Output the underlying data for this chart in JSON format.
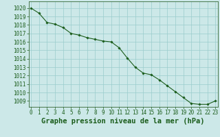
{
  "x": [
    0,
    1,
    2,
    3,
    4,
    5,
    6,
    7,
    8,
    9,
    10,
    11,
    12,
    13,
    14,
    15,
    16,
    17,
    18,
    19,
    20,
    21,
    22,
    23
  ],
  "y": [
    1020.0,
    1019.4,
    1018.3,
    1018.1,
    1017.7,
    1017.0,
    1016.8,
    1016.5,
    1016.3,
    1016.1,
    1016.0,
    1015.3,
    1014.1,
    1013.0,
    1012.3,
    1012.1,
    1011.5,
    1010.8,
    1010.1,
    1009.4,
    1008.7,
    1008.6,
    1008.6,
    1009.0
  ],
  "line_color": "#1a5c1a",
  "marker": "D",
  "marker_size": 1.8,
  "bg_color": "#cce8e8",
  "grid_color": "#99cccc",
  "xlabel": "Graphe pression niveau de la mer (hPa)",
  "xlabel_color": "#1a5c1a",
  "tick_color": "#1a5c1a",
  "ylim": [
    1008.3,
    1020.8
  ],
  "yticks": [
    1009,
    1010,
    1011,
    1012,
    1013,
    1014,
    1015,
    1016,
    1017,
    1018,
    1019,
    1020
  ],
  "xticks": [
    0,
    1,
    2,
    3,
    4,
    5,
    6,
    7,
    8,
    9,
    10,
    11,
    12,
    13,
    14,
    15,
    16,
    17,
    18,
    19,
    20,
    21,
    22,
    23
  ],
  "axis_color": "#336633",
  "tick_fontsize": 5.5,
  "xlabel_fontsize": 7.5,
  "linewidth": 0.8
}
